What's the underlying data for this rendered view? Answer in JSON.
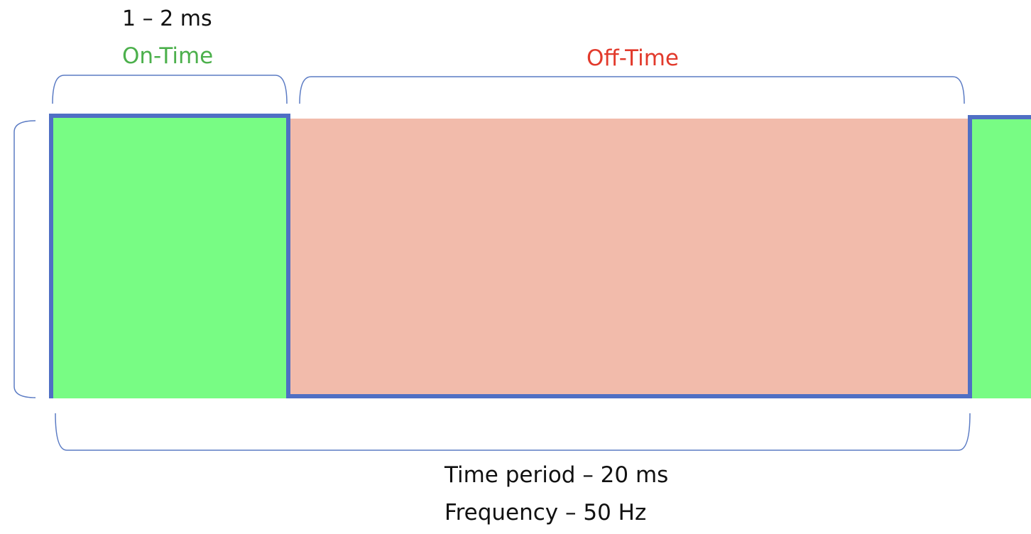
{
  "labels": {
    "pulse_width": "1 – 2 ms",
    "on_time": "On-Time",
    "off_time": "Off-Time",
    "time_period": "Time period – 20 ms",
    "frequency": "Frequency – 50 Hz"
  },
  "colors": {
    "on_fill": "#78fc84",
    "off_fill": "#f2bbab",
    "signal_line": "#4f6fc4",
    "bracket": "#5b7bc4",
    "on_text": "#4cb04c",
    "off_text": "#e23a2c",
    "text": "#111111"
  }
}
